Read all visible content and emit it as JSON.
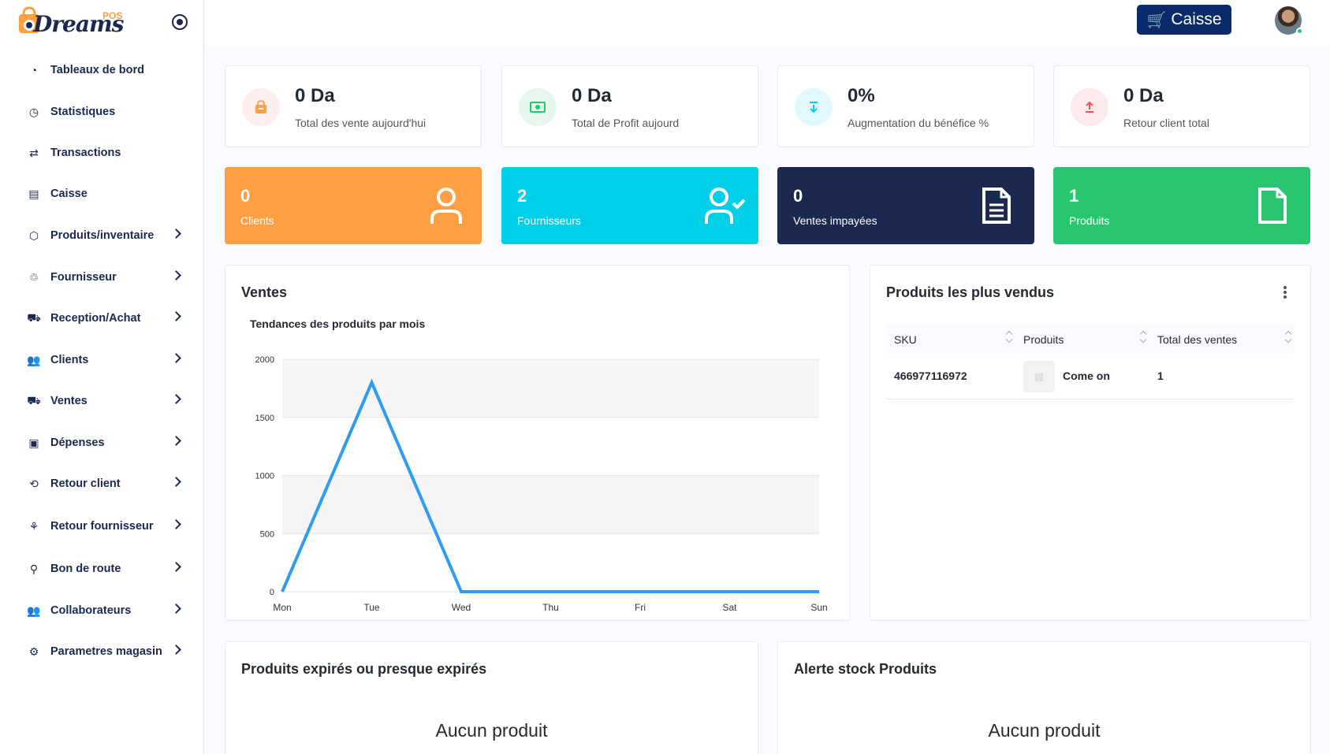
{
  "brand": {
    "logo_text": "Dreams",
    "logo_badge": "POS"
  },
  "sidebar": {
    "items": [
      {
        "label": "Tableaux de bord",
        "icon": "dashboard-icon",
        "glyph": "◔",
        "has_children": false
      },
      {
        "label": "Statistiques",
        "icon": "clock-chart-icon",
        "glyph": "◷",
        "has_children": false
      },
      {
        "label": "Transactions",
        "icon": "transfer-icon",
        "glyph": "⇄",
        "has_children": false
      },
      {
        "label": "Caisse",
        "icon": "cash-register-icon",
        "glyph": "▤",
        "has_children": false
      },
      {
        "label": "Produits/inventaire",
        "icon": "box-icon",
        "glyph": "⬡",
        "has_children": true
      },
      {
        "label": "Fournisseur",
        "icon": "supplier-icon",
        "glyph": "♲",
        "has_children": true
      },
      {
        "label": "Reception/Achat",
        "icon": "shopping-cart-icon",
        "glyph": "⛟",
        "has_children": true
      },
      {
        "label": "Clients",
        "icon": "users-icon",
        "glyph": "👥",
        "has_children": true
      },
      {
        "label": "Ventes",
        "icon": "cart-icon",
        "glyph": "⛟",
        "has_children": true
      },
      {
        "label": "Dépenses",
        "icon": "wallet-icon",
        "glyph": "▣",
        "has_children": true
      },
      {
        "label": "Retour client",
        "icon": "return-client-icon",
        "glyph": "⟲",
        "has_children": true
      },
      {
        "label": "Retour fournisseur",
        "icon": "return-supplier-icon",
        "glyph": "⚘",
        "has_children": true
      },
      {
        "label": "Bon de route",
        "icon": "route-icon",
        "glyph": "⚲",
        "has_children": true
      },
      {
        "label": "Collaborateurs",
        "icon": "team-icon",
        "glyph": "👥",
        "has_children": true
      },
      {
        "label": "Parametres magasin",
        "icon": "settings-icon",
        "glyph": "⚙",
        "has_children": true
      }
    ]
  },
  "header": {
    "caisse_label": "Caisse"
  },
  "stats": [
    {
      "value": "0 Da",
      "label": "Total des vente aujourd'hui",
      "icon": "shopping-bag-icon",
      "bg": "#ffeeee",
      "fg": "#ff9f43"
    },
    {
      "value": "0 Da",
      "label": "Total de Profit aujourd",
      "icon": "money-icon",
      "bg": "#e6f8ed",
      "fg": "#28c76f"
    },
    {
      "value": "0%",
      "label": "Augmentation du bénéfice %",
      "icon": "download-arrow-icon",
      "bg": "#e1f8fc",
      "fg": "#00cfe8"
    },
    {
      "value": "0 Da",
      "label": "Retour client total",
      "icon": "upload-arrow-icon",
      "bg": "#fdeaea",
      "fg": "#ea5455"
    }
  ],
  "counts": [
    {
      "value": "0",
      "label": "Clients",
      "icon": "user-icon",
      "bg": "#ff9f43"
    },
    {
      "value": "2",
      "label": "Fournisseurs",
      "icon": "user-check-icon",
      "bg": "#00cfe8"
    },
    {
      "value": "0",
      "label": "Ventes impayées",
      "icon": "document-text-icon",
      "bg": "#1b2850"
    },
    {
      "value": "1",
      "label": "Produits",
      "icon": "file-icon",
      "bg": "#28c76f"
    }
  ],
  "sales_panel": {
    "title": "Ventes"
  },
  "chart_data": {
    "type": "line",
    "title": "Tendances des produits par mois",
    "categories": [
      "Mon",
      "Tue",
      "Wed",
      "Thu",
      "Fri",
      "Sat",
      "Sun"
    ],
    "series": [
      {
        "values": [
          0,
          1800,
          0,
          0,
          0,
          0,
          0
        ]
      }
    ],
    "ylim": [
      0,
      2000
    ],
    "yticks": [
      0,
      500,
      1000,
      1500,
      2000
    ],
    "line_color": "#2e9cf3",
    "band_color": "#f5f5f5"
  },
  "best_sellers": {
    "title": "Produits les plus vendus",
    "columns": [
      "SKU",
      "Produits",
      "Total des ventes"
    ],
    "rows": [
      {
        "sku": "466977116972",
        "product": "Come on",
        "total": "1"
      }
    ]
  },
  "expired_panel": {
    "title": "Produits expirés ou presque expirés",
    "empty": "Aucun produit"
  },
  "stock_panel": {
    "title": "Alerte stock Produits",
    "empty": "Aucun produit"
  }
}
